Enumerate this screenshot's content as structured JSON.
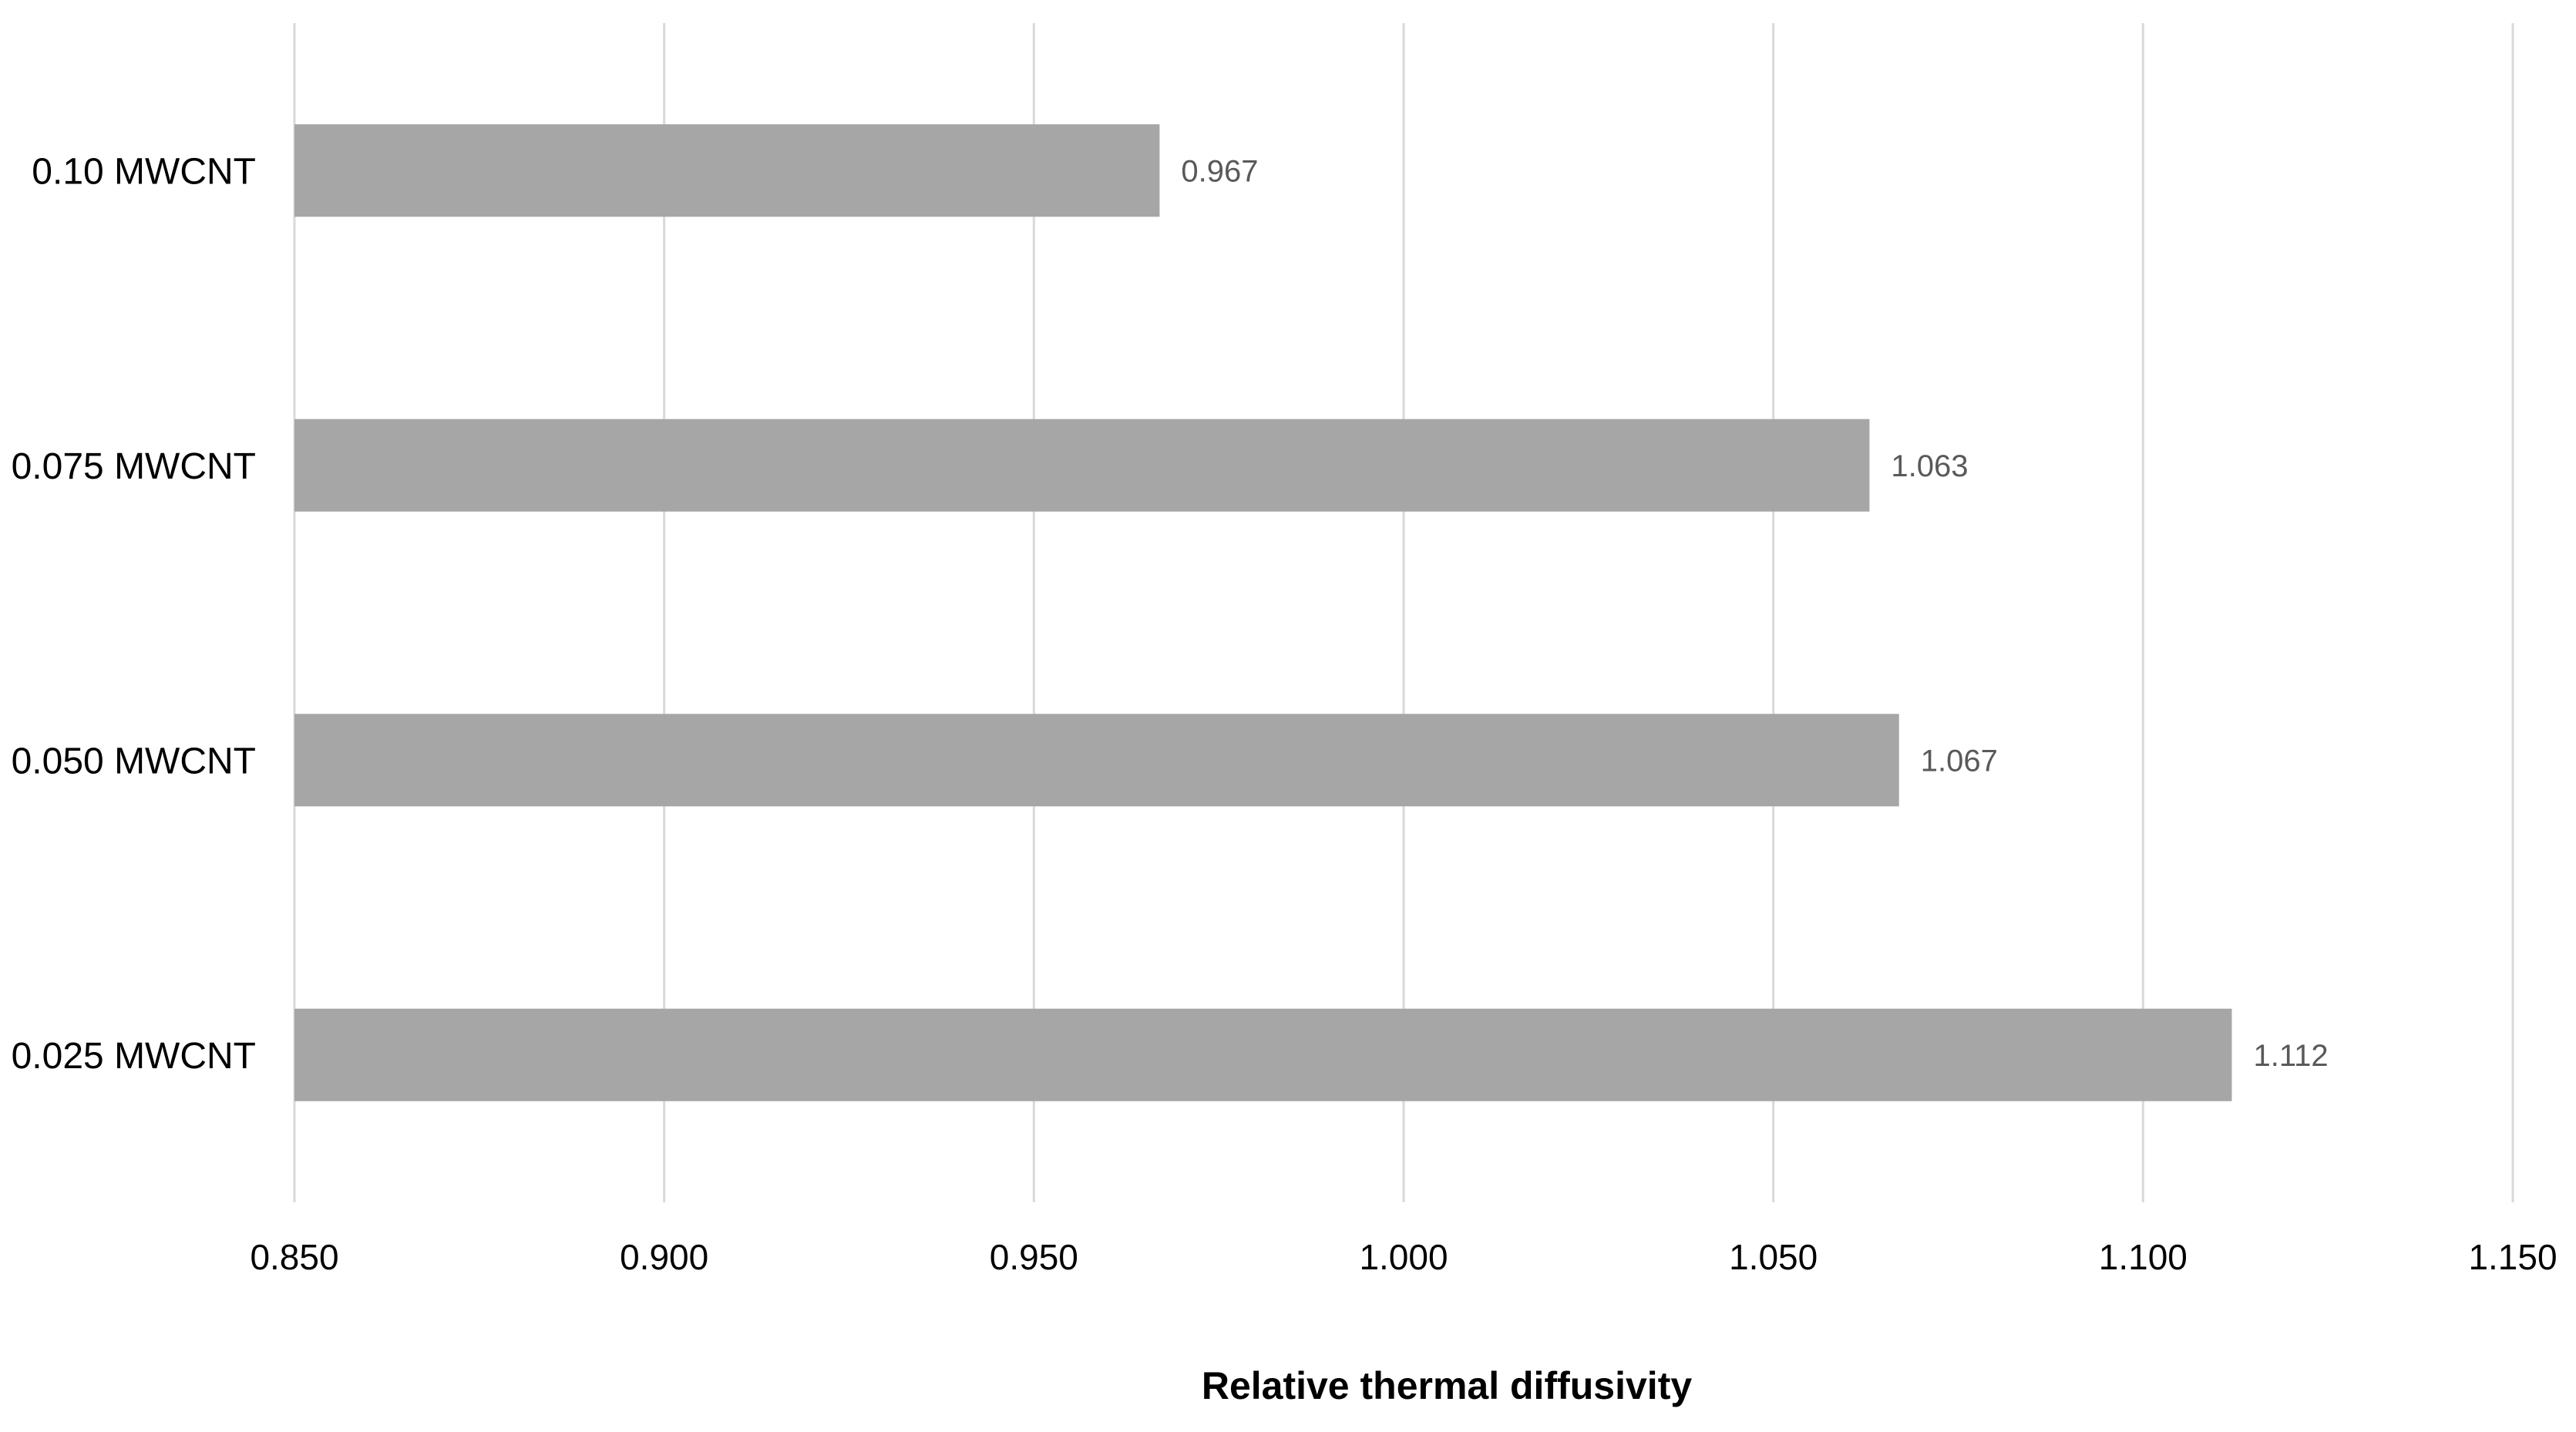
{
  "chart_data": {
    "type": "bar",
    "orientation": "horizontal",
    "title": "",
    "xlabel": "Relative thermal diffusivity",
    "ylabel": "",
    "categories": [
      "0.025 MWCNT",
      "0.050 MWCNT",
      "0.075 MWCNT",
      "0.10 MWCNT"
    ],
    "values": [
      1.112,
      1.067,
      1.063,
      0.967
    ],
    "data_labels": [
      "1.112",
      "1.067",
      "1.063",
      "0.967"
    ],
    "xlim": [
      0.85,
      1.15
    ],
    "xticks": [
      0.85,
      0.9,
      0.95,
      1.0,
      1.05,
      1.1,
      1.15
    ],
    "xtick_labels": [
      "0.850",
      "0.900",
      "0.950",
      "1.000",
      "1.050",
      "1.100",
      "1.150"
    ],
    "grid": "vertical",
    "legend": "none",
    "bar_color": "#a6a6a6",
    "gridline_color": "#d9d9d9"
  }
}
